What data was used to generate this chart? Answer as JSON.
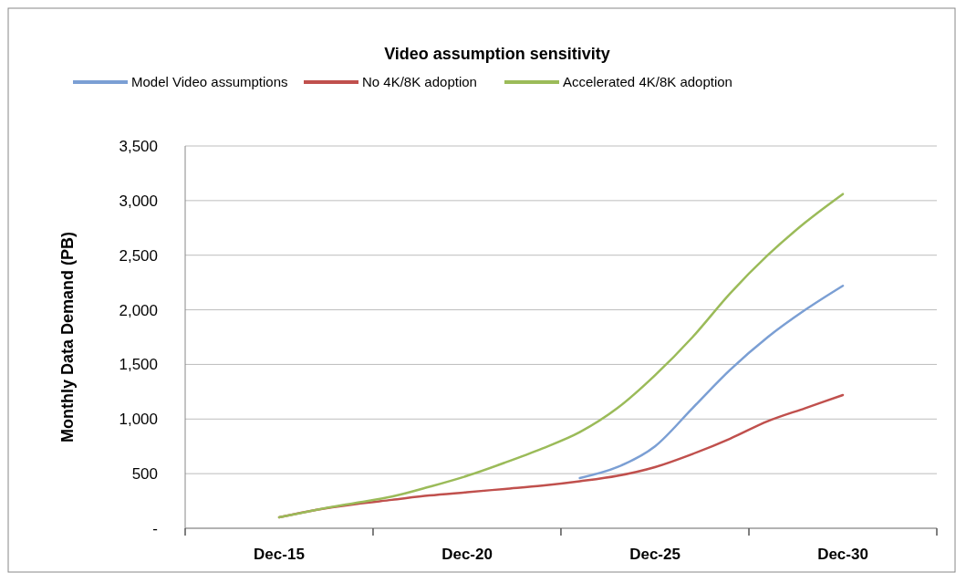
{
  "chart_data": {
    "type": "line",
    "title": "Video assumption sensitivity",
    "ylabel": "Monthly Data Demand (PB)",
    "x": [
      "2015-12",
      "2016-12",
      "2017-12",
      "2018-12",
      "2019-12",
      "2020-12",
      "2021-12",
      "2022-12",
      "2023-12",
      "2024-12",
      "2025-12",
      "2026-12",
      "2027-12",
      "2028-12",
      "2029-12",
      "2030-12"
    ],
    "series": [
      {
        "name": "Model Video assumptions",
        "color": "#7b9fd4",
        "values": [
          null,
          null,
          null,
          null,
          null,
          null,
          null,
          null,
          460,
          560,
          750,
          1100,
          1450,
          1750,
          2000,
          2220
        ]
      },
      {
        "name": "No 4K/8K adoption",
        "color": "#c0504d",
        "values": [
          100,
          170,
          220,
          260,
          300,
          330,
          360,
          390,
          430,
          480,
          560,
          680,
          820,
          980,
          1100,
          1220
        ]
      },
      {
        "name": "Accelerated 4K/8K adoption",
        "color": "#9bbb59",
        "values": [
          100,
          170,
          230,
          290,
          380,
          480,
          600,
          730,
          880,
          1100,
          1400,
          1750,
          2150,
          2500,
          2800,
          3060
        ]
      }
    ],
    "xlim": [
      "2013-06",
      "2033-06"
    ],
    "xticks": [
      {
        "value": "2013-06",
        "label": null
      },
      {
        "value": "2015-12",
        "label": "Dec-15"
      },
      {
        "value": "2018-06",
        "label": null
      },
      {
        "value": "2020-12",
        "label": "Dec-20"
      },
      {
        "value": "2023-06",
        "label": null
      },
      {
        "value": "2025-12",
        "label": "Dec-25"
      },
      {
        "value": "2028-06",
        "label": null
      },
      {
        "value": "2030-12",
        "label": "Dec-30"
      },
      {
        "value": "2033-06",
        "label": null
      }
    ],
    "ylim": [
      0,
      3500
    ],
    "yticks": [
      {
        "value": 0,
        "label": "-"
      },
      {
        "value": 500,
        "label": "500"
      },
      {
        "value": 1000,
        "label": "1,000"
      },
      {
        "value": 1500,
        "label": "1,500"
      },
      {
        "value": 2000,
        "label": "2,000"
      },
      {
        "value": 2500,
        "label": "2,500"
      },
      {
        "value": 3000,
        "label": "3,000"
      },
      {
        "value": 3500,
        "label": "3,500"
      }
    ],
    "grid": "y",
    "legend": "top",
    "marker": "none",
    "line_style": "solid"
  }
}
